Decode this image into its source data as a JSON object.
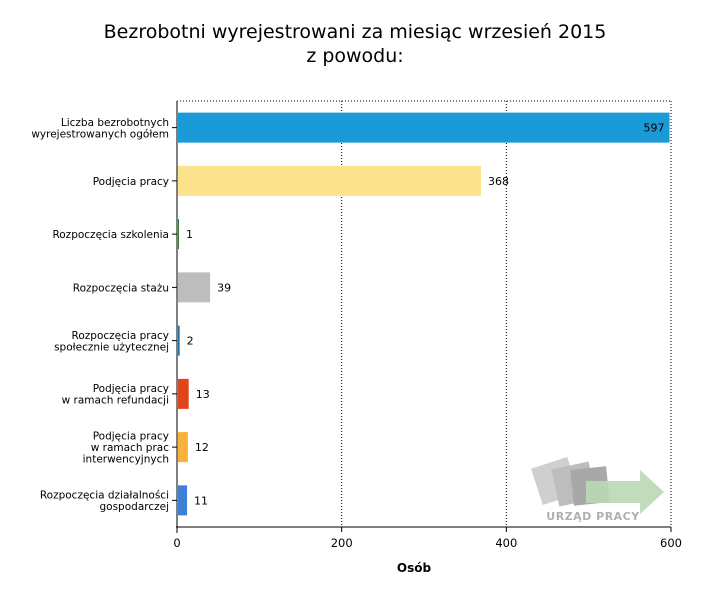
{
  "title": {
    "line1": "Bezrobotni wyrejestrowani za miesiąc wrzesień 2015",
    "line2": "z powodu:"
  },
  "watermark": {
    "text": "URZĄD PRACY"
  },
  "chart_data": {
    "type": "bar",
    "orientation": "horizontal",
    "categories": [
      [
        "Liczba bezrobotnych",
        "wyrejestrowanych ogółem"
      ],
      [
        "Podjęcia pracy"
      ],
      [
        "Rozpoczęcia szkolenia"
      ],
      [
        "Rozpoczęcia stażu"
      ],
      [
        "Rozpoczęcia pracy",
        "społecznie użytecznej"
      ],
      [
        "Podjęcia pracy",
        "w ramach refundacji"
      ],
      [
        "Podjęcia pracy",
        "w ramach prac",
        "interwencyjnych"
      ],
      [
        "Rozpoczęcia działalności",
        "gospodarczej"
      ]
    ],
    "values": [
      597,
      368,
      1,
      39,
      2,
      13,
      12,
      11
    ],
    "colors": [
      "#1a9ad6",
      "#fde28c",
      "#2e7d32",
      "#bdbdbd",
      "#1f6fa0",
      "#e0441a",
      "#f9b13a",
      "#3d7fd4"
    ],
    "xlabel": "Osób",
    "xlim": [
      0,
      600
    ],
    "xticks": [
      "0",
      "200",
      "400",
      "600"
    ],
    "grid": true
  }
}
